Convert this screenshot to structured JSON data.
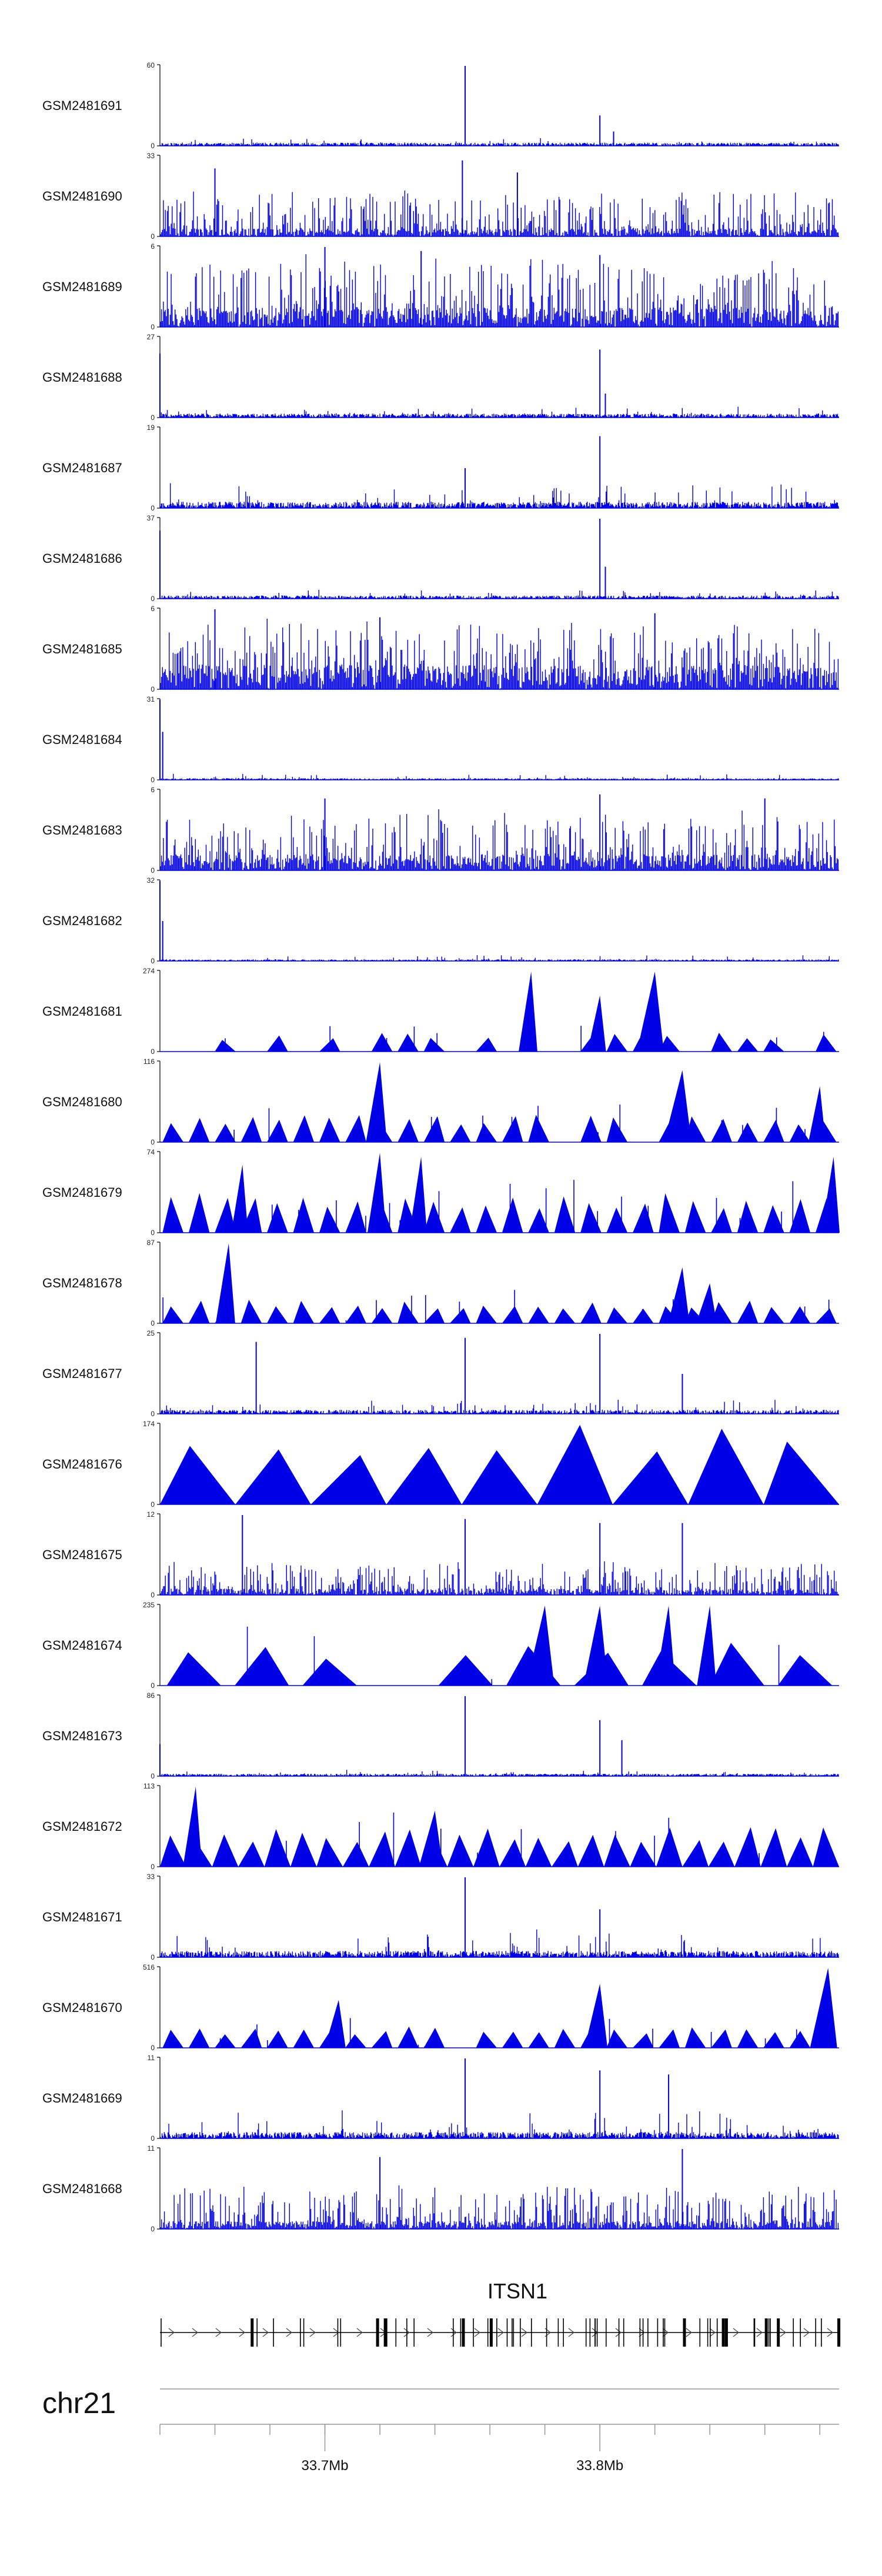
{
  "chart_data": {
    "type": "area",
    "chromosome": "chr21",
    "x_range_mb": [
      33.64,
      33.887
    ],
    "x_ticks_mb": [
      33.7,
      33.8
    ],
    "x_tick_labels": [
      "33.7Mb",
      "33.8Mb"
    ],
    "bar_color": "#0000e6",
    "gene": {
      "name": "ITSN1",
      "start_mb": 33.64,
      "end_mb": 33.887,
      "strand": "+"
    },
    "tracks": [
      {
        "name": "GSM2481691",
        "ymax": 60,
        "style": "spiky",
        "seed": 11,
        "base": 0.04,
        "noise": 0.06,
        "peaks": [
          [
            33.751,
            1.0
          ],
          [
            33.8,
            0.38
          ],
          [
            33.805,
            0.18
          ]
        ]
      },
      {
        "name": "GSM2481690",
        "ymax": 33,
        "style": "dense",
        "seed": 22,
        "base": 0.1,
        "noise": 0.5,
        "peaks": [
          [
            33.66,
            0.85
          ],
          [
            33.75,
            0.95
          ],
          [
            33.77,
            0.8
          ]
        ]
      },
      {
        "name": "GSM2481689",
        "ymax": 6,
        "style": "dense",
        "seed": 33,
        "base": 0.25,
        "noise": 0.7,
        "peaks": [
          [
            33.7,
            1.0
          ],
          [
            33.735,
            0.95
          ],
          [
            33.8,
            0.9
          ]
        ]
      },
      {
        "name": "GSM2481688",
        "ymax": 27,
        "style": "spiky",
        "seed": 44,
        "base": 0.05,
        "noise": 0.1,
        "peaks": [
          [
            33.64,
            0.8
          ],
          [
            33.8,
            0.85
          ],
          [
            33.802,
            0.3
          ]
        ]
      },
      {
        "name": "GSM2481687",
        "ymax": 19,
        "style": "spiky",
        "seed": 55,
        "base": 0.08,
        "noise": 0.25,
        "peaks": [
          [
            33.8,
            0.9
          ],
          [
            33.751,
            0.5
          ]
        ]
      },
      {
        "name": "GSM2481686",
        "ymax": 37,
        "style": "spiky",
        "seed": 66,
        "base": 0.04,
        "noise": 0.1,
        "peaks": [
          [
            33.64,
            0.85
          ],
          [
            33.8,
            1.0
          ],
          [
            33.802,
            0.4
          ]
        ]
      },
      {
        "name": "GSM2481685",
        "ymax": 6,
        "style": "dense",
        "seed": 77,
        "base": 0.3,
        "noise": 0.6,
        "peaks": [
          [
            33.66,
            1.0
          ],
          [
            33.72,
            0.9
          ],
          [
            33.82,
            0.95
          ]
        ]
      },
      {
        "name": "GSM2481684",
        "ymax": 31,
        "style": "spiky",
        "seed": 88,
        "base": 0.02,
        "noise": 0.06,
        "peaks": [
          [
            33.64,
            1.0
          ],
          [
            33.641,
            0.6
          ]
        ]
      },
      {
        "name": "GSM2481683",
        "ymax": 6,
        "style": "dense",
        "seed": 99,
        "base": 0.2,
        "noise": 0.6,
        "peaks": [
          [
            33.7,
            0.9
          ],
          [
            33.8,
            0.95
          ],
          [
            33.86,
            0.9
          ]
        ]
      },
      {
        "name": "GSM2481682",
        "ymax": 32,
        "style": "spiky",
        "seed": 110,
        "base": 0.02,
        "noise": 0.07,
        "peaks": [
          [
            33.64,
            1.0
          ],
          [
            33.641,
            0.5
          ]
        ]
      },
      {
        "name": "GSM2481681",
        "ymax": 274,
        "style": "triangles",
        "seed": 121,
        "tri_h": 0.24,
        "gap": 0.35,
        "peaks": [
          [
            33.775,
            1.0
          ],
          [
            33.8,
            0.7
          ],
          [
            33.82,
            1.0
          ]
        ]
      },
      {
        "name": "GSM2481680",
        "ymax": 116,
        "style": "triangles",
        "seed": 132,
        "tri_h": 0.35,
        "gap": 0.05,
        "peaks": [
          [
            33.72,
            1.0
          ],
          [
            33.83,
            0.9
          ],
          [
            33.88,
            0.7
          ]
        ]
      },
      {
        "name": "GSM2481679",
        "ymax": 74,
        "style": "triangles",
        "seed": 143,
        "tri_h": 0.5,
        "gap": 0.05,
        "peaks": [
          [
            33.67,
            0.85
          ],
          [
            33.72,
            1.0
          ],
          [
            33.735,
            0.95
          ],
          [
            33.885,
            0.95
          ]
        ]
      },
      {
        "name": "GSM2481678",
        "ymax": 87,
        "style": "triangles",
        "seed": 154,
        "tri_h": 0.3,
        "gap": 0.05,
        "peaks": [
          [
            33.665,
            1.0
          ],
          [
            33.83,
            0.7
          ],
          [
            33.84,
            0.5
          ]
        ]
      },
      {
        "name": "GSM2481677",
        "ymax": 25,
        "style": "spiky",
        "seed": 165,
        "base": 0.05,
        "noise": 0.15,
        "peaks": [
          [
            33.675,
            0.9
          ],
          [
            33.751,
            0.95
          ],
          [
            33.8,
            1.0
          ],
          [
            33.83,
            0.5
          ]
        ]
      },
      {
        "name": "GSM2481676",
        "ymax": 174,
        "style": "triangles",
        "seed": 176,
        "tri_h": 1.0,
        "gap": 0.0,
        "segments": 9,
        "peaks": []
      },
      {
        "name": "GSM2481675",
        "ymax": 12,
        "style": "dense",
        "seed": 187,
        "base": 0.08,
        "noise": 0.35,
        "peaks": [
          [
            33.67,
            1.0
          ],
          [
            33.751,
            0.95
          ],
          [
            33.8,
            0.9
          ],
          [
            33.83,
            0.9
          ]
        ]
      },
      {
        "name": "GSM2481674",
        "ymax": 235,
        "style": "triangles",
        "seed": 198,
        "tri_h": 0.55,
        "gap": 0.25,
        "segments": 10,
        "peaks": [
          [
            33.78,
            1.0
          ],
          [
            33.8,
            1.0
          ],
          [
            33.825,
            1.0
          ],
          [
            33.84,
            1.0
          ]
        ]
      },
      {
        "name": "GSM2481673",
        "ymax": 86,
        "style": "spiky",
        "seed": 209,
        "base": 0.03,
        "noise": 0.06,
        "peaks": [
          [
            33.64,
            0.4
          ],
          [
            33.751,
            1.0
          ],
          [
            33.8,
            0.7
          ],
          [
            33.808,
            0.45
          ]
        ]
      },
      {
        "name": "GSM2481672",
        "ymax": 113,
        "style": "triangles",
        "seed": 220,
        "tri_h": 0.5,
        "gap": 0.0,
        "peaks": [
          [
            33.653,
            1.0
          ],
          [
            33.74,
            0.7
          ]
        ]
      },
      {
        "name": "GSM2481671",
        "ymax": 33,
        "style": "spiky",
        "seed": 231,
        "base": 0.08,
        "noise": 0.3,
        "peaks": [
          [
            33.751,
            1.0
          ],
          [
            33.8,
            0.6
          ]
        ]
      },
      {
        "name": "GSM2481670",
        "ymax": 516,
        "style": "triangles",
        "seed": 242,
        "tri_h": 0.28,
        "gap": 0.05,
        "peaks": [
          [
            33.705,
            0.6
          ],
          [
            33.8,
            0.8
          ],
          [
            33.883,
            1.0
          ]
        ]
      },
      {
        "name": "GSM2481669",
        "ymax": 11,
        "style": "spiky",
        "seed": 253,
        "base": 0.08,
        "noise": 0.3,
        "peaks": [
          [
            33.751,
            1.0
          ],
          [
            33.8,
            0.85
          ],
          [
            33.825,
            0.8
          ]
        ]
      },
      {
        "name": "GSM2481668",
        "ymax": 11,
        "style": "dense",
        "seed": 264,
        "base": 0.1,
        "noise": 0.45,
        "peaks": [
          [
            33.72,
            0.9
          ],
          [
            33.83,
            1.0
          ]
        ]
      }
    ]
  }
}
